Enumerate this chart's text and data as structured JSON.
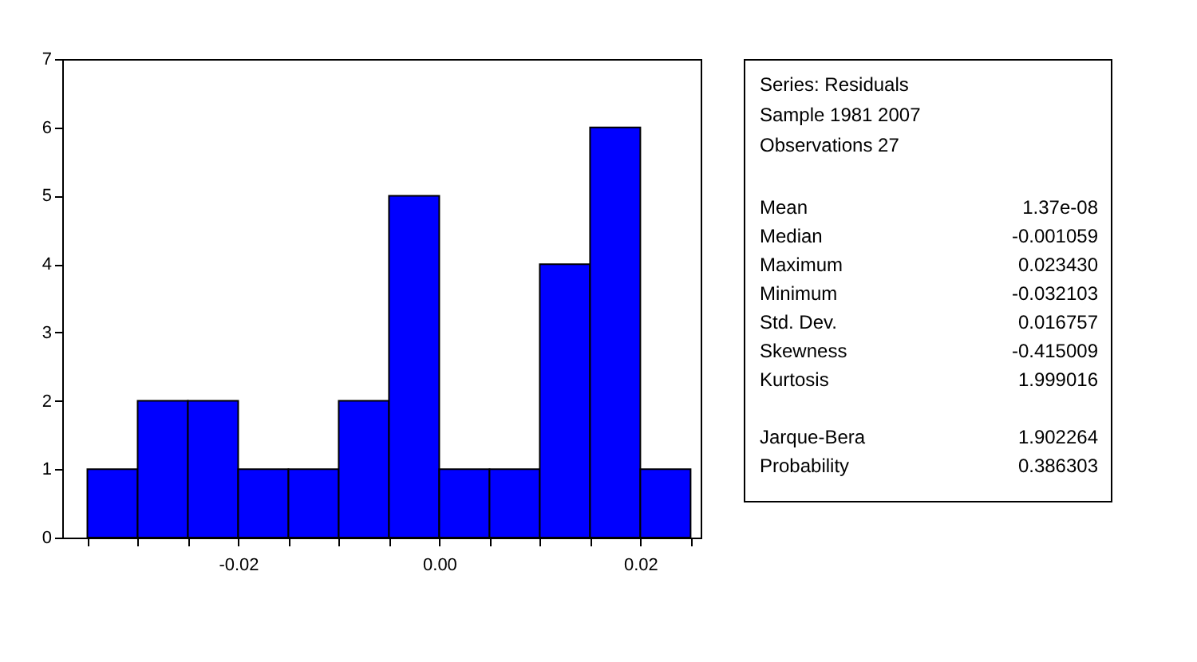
{
  "chart_data": {
    "type": "histogram",
    "bins": [
      -0.035,
      -0.03,
      -0.025,
      -0.02,
      -0.015,
      -0.01,
      -0.005,
      0.0,
      0.005,
      0.01,
      0.015,
      0.02,
      0.025
    ],
    "values": [
      1,
      2,
      2,
      1,
      1,
      2,
      5,
      1,
      1,
      4,
      6,
      1
    ],
    "color": "#0000ff",
    "xlim": [
      -0.0375,
      0.026
    ],
    "xticks": [
      {
        "value": -0.035,
        "label": null
      },
      {
        "value": -0.03,
        "label": null
      },
      {
        "value": -0.025,
        "label": null
      },
      {
        "value": -0.02,
        "label": "-0.02"
      },
      {
        "value": -0.015,
        "label": null
      },
      {
        "value": -0.01,
        "label": null
      },
      {
        "value": -0.005,
        "label": null
      },
      {
        "value": 0.0,
        "label": "0.00"
      },
      {
        "value": 0.005,
        "label": null
      },
      {
        "value": 0.01,
        "label": null
      },
      {
        "value": 0.015,
        "label": null
      },
      {
        "value": 0.02,
        "label": "0.02"
      },
      {
        "value": 0.025,
        "label": null
      }
    ],
    "ylim": [
      0,
      7
    ],
    "yticks": [
      0,
      1,
      2,
      3,
      4,
      5,
      6,
      7
    ],
    "grid": false,
    "annotations": [
      "Series: Residuals",
      "Sample 1981 2007",
      "Observations 27",
      "Mean",
      "1.37e-08",
      "Median",
      "-0.001059",
      "Maximum",
      "0.023430",
      "Minimum",
      "-0.032103",
      "Std. Dev.",
      "0.016757",
      "Skewness",
      "-0.415009",
      "Kurtosis",
      "1.999016",
      "Jarque-Bera",
      "1.902264",
      "Probability",
      "0.386303"
    ]
  }
}
